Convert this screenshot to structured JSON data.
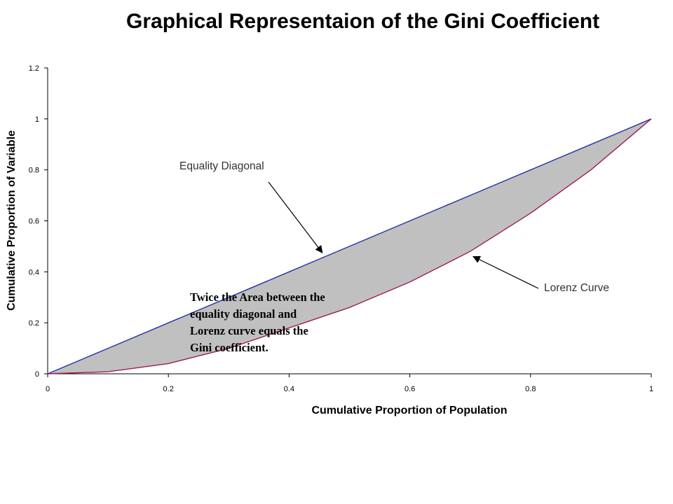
{
  "chart_data": {
    "type": "area",
    "title": "Graphical Representaion of the Gini Coefficient",
    "xlabel": "Cumulative Proportion of Population",
    "ylabel": "Cumulative Proportion of Variable",
    "xlim": [
      0,
      1
    ],
    "ylim": [
      0,
      1.2
    ],
    "x_ticks": [
      "0",
      "0.2",
      "0.4",
      "0.6",
      "0.8",
      "1"
    ],
    "y_ticks": [
      "0",
      "0.2",
      "0.4",
      "0.6",
      "0.8",
      "1",
      "1.2"
    ],
    "grid": false,
    "series": [
      {
        "name": "Equality Diagonal",
        "color": "#2233aa",
        "x": [
          0,
          0.1,
          0.2,
          0.3,
          0.4,
          0.5,
          0.6,
          0.7,
          0.8,
          0.9,
          1
        ],
        "y": [
          0,
          0.1,
          0.2,
          0.3,
          0.4,
          0.5,
          0.6,
          0.7,
          0.8,
          0.9,
          1
        ]
      },
      {
        "name": "Lorenz Curve",
        "color": "#a01c5a",
        "x": [
          0,
          0.1,
          0.2,
          0.3,
          0.4,
          0.5,
          0.6,
          0.7,
          0.8,
          0.9,
          1
        ],
        "y": [
          0,
          0.008,
          0.04,
          0.1,
          0.18,
          0.26,
          0.36,
          0.48,
          0.63,
          0.8,
          1
        ]
      }
    ],
    "fill_between_color": "#c0c0c0",
    "annotations": [
      {
        "text": "Equality Diagonal",
        "arrow_to": [
          0.455,
          0.475
        ]
      },
      {
        "text": "Lorenz Curve",
        "arrow_to": [
          0.705,
          0.46
        ]
      }
    ],
    "note": [
      "Twice the Area between the",
      "equality diagonal and",
      "Lorenz curve equals the",
      "Gini coefficient."
    ]
  }
}
